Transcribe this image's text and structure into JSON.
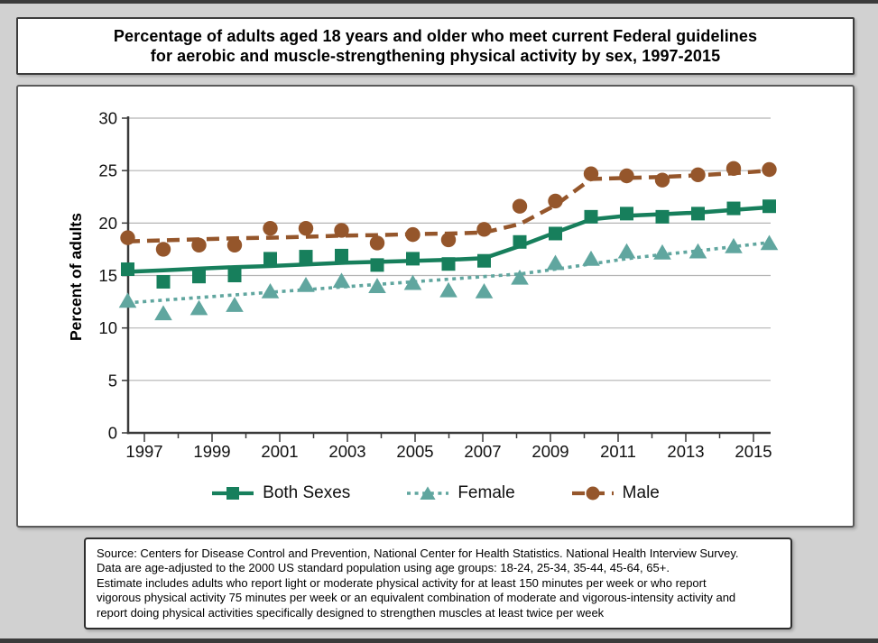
{
  "page": {
    "background": "#d1d1d1",
    "edge_strip_color": "#3b3b3b"
  },
  "title": {
    "line1": "Percentage of adults aged 18 years and older who meet current Federal guidelines",
    "line2": "for aerobic and muscle-strengthening physical activity by sex, 1997-2015"
  },
  "footnote": {
    "lines": [
      "Source: Centers for Disease Control and Prevention, National Center for Health Statistics. National Health Interview Survey.",
      "Data are age-adjusted to the 2000 US standard population using age groups: 18-24, 25-34, 35-44, 45-64, 65+.",
      "Estimate includes adults who report light or moderate physical activity for at least 150 minutes per week or who report",
      "vigorous physical activity 75 minutes per week or an equivalent combination of moderate and vigorous-intensity activity and",
      "report doing physical activities specifically designed to strengthen muscles at least twice per week"
    ]
  },
  "chart_data": {
    "type": "line",
    "title": "Percentage of adults aged 18 years and older who meet current Federal guidelines for aerobic and muscle-strengthening physical activity by sex, 1997-2015",
    "xlabel": "",
    "ylabel": "Percent of adults",
    "ylim": [
      0,
      30
    ],
    "y_ticks": [
      0,
      5,
      10,
      15,
      20,
      25,
      30
    ],
    "grid": "horizontal",
    "legend_position": "bottom",
    "x": [
      1997,
      1998,
      1999,
      2000,
      2001,
      2002,
      2003,
      2004,
      2005,
      2006,
      2007,
      2008,
      2009,
      2010,
      2011,
      2012,
      2013,
      2014,
      2015
    ],
    "x_tick_labels": [
      "1997",
      "1999",
      "2001",
      "2003",
      "2005",
      "2007",
      "2009",
      "2011",
      "2013",
      "2015"
    ],
    "series": [
      {
        "name": "Both Sexes",
        "color": "#177F5C",
        "marker": "square",
        "line_style": "solid",
        "values": [
          15.6,
          14.4,
          14.9,
          15.0,
          16.6,
          16.8,
          16.9,
          16.0,
          16.6,
          16.1,
          16.4,
          18.2,
          19.0,
          20.6,
          20.9,
          20.6,
          20.9,
          21.4,
          21.6
        ],
        "trend_line": [
          15.35,
          15.5,
          15.65,
          15.8,
          15.9,
          16.05,
          16.2,
          16.3,
          16.4,
          16.5,
          16.65,
          17.8,
          19.1,
          20.35,
          20.7,
          20.85,
          21.0,
          21.25,
          21.5
        ]
      },
      {
        "name": "Female",
        "color": "#60A69F",
        "marker": "triangle",
        "line_style": "dotted",
        "values": [
          12.6,
          11.4,
          11.9,
          12.2,
          13.5,
          14.1,
          14.5,
          14.0,
          14.3,
          13.6,
          13.5,
          14.8,
          16.2,
          16.6,
          17.3,
          17.2,
          17.3,
          17.8,
          18.1
        ],
        "trend_line": [
          12.4,
          12.65,
          12.9,
          13.15,
          13.4,
          13.65,
          13.9,
          14.15,
          14.4,
          14.65,
          14.9,
          15.15,
          15.6,
          16.1,
          16.6,
          17.0,
          17.35,
          17.75,
          18.15
        ]
      },
      {
        "name": "Male",
        "color": "#95562B",
        "marker": "circle",
        "line_style": "dashed",
        "values": [
          18.6,
          17.5,
          17.9,
          17.9,
          19.5,
          19.5,
          19.3,
          18.1,
          18.9,
          18.4,
          19.4,
          21.6,
          22.1,
          24.7,
          24.5,
          24.1,
          24.6,
          25.2,
          25.1
        ],
        "trend_line": [
          18.25,
          18.35,
          18.45,
          18.55,
          18.6,
          18.7,
          18.8,
          18.85,
          18.95,
          19.0,
          19.1,
          19.9,
          21.7,
          24.2,
          24.3,
          24.4,
          24.55,
          24.75,
          25.0
        ]
      }
    ],
    "axis_color": "#3a3a3a",
    "gridline_color": "#b4b4b4"
  }
}
